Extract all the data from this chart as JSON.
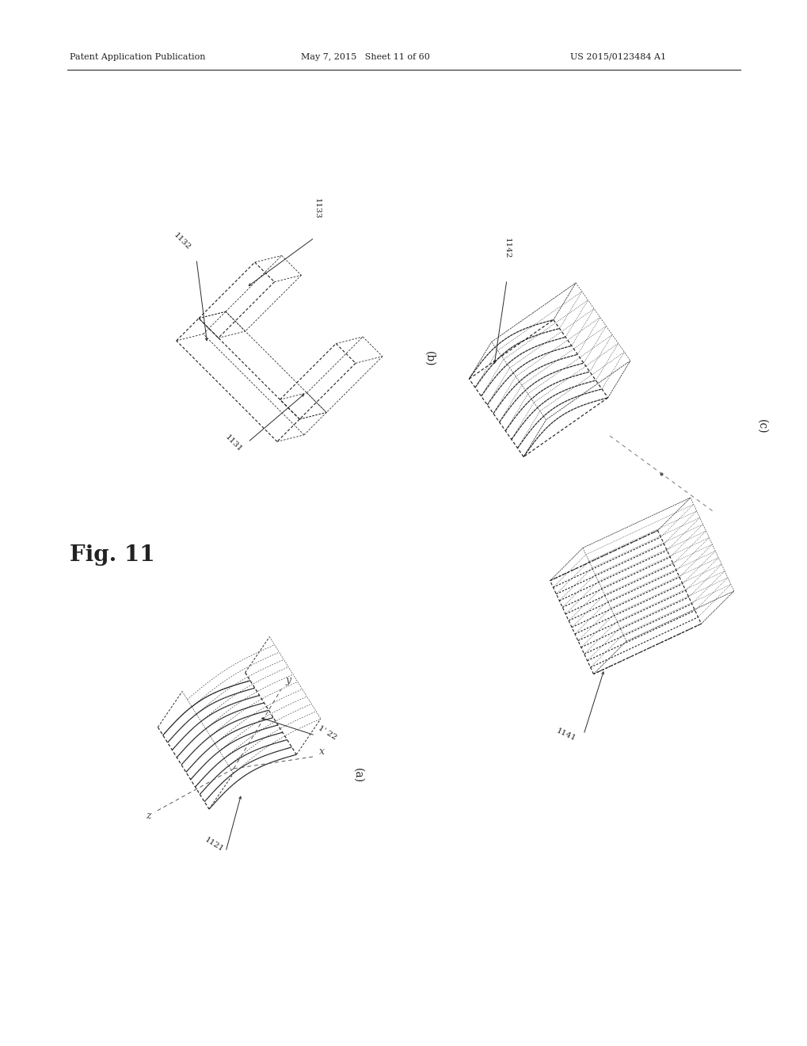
{
  "background_color": "#ffffff",
  "header_left": "Patent Application Publication",
  "header_center": "May 7, 2015   Sheet 11 of 60",
  "header_right": "US 2015/0123484 A1",
  "fig_label": "Fig. 11",
  "diagram_a_label": "(a)",
  "diagram_b_label": "(b)",
  "diagram_c_label": "(c)",
  "label_1121": "1121",
  "label_1122": "1' 22",
  "label_1131": "1131",
  "label_1132": "1132",
  "label_1133": "1133",
  "label_1141": "1141",
  "label_1142": "1142",
  "line_color": "#2a2a2a",
  "text_color": "#222222"
}
